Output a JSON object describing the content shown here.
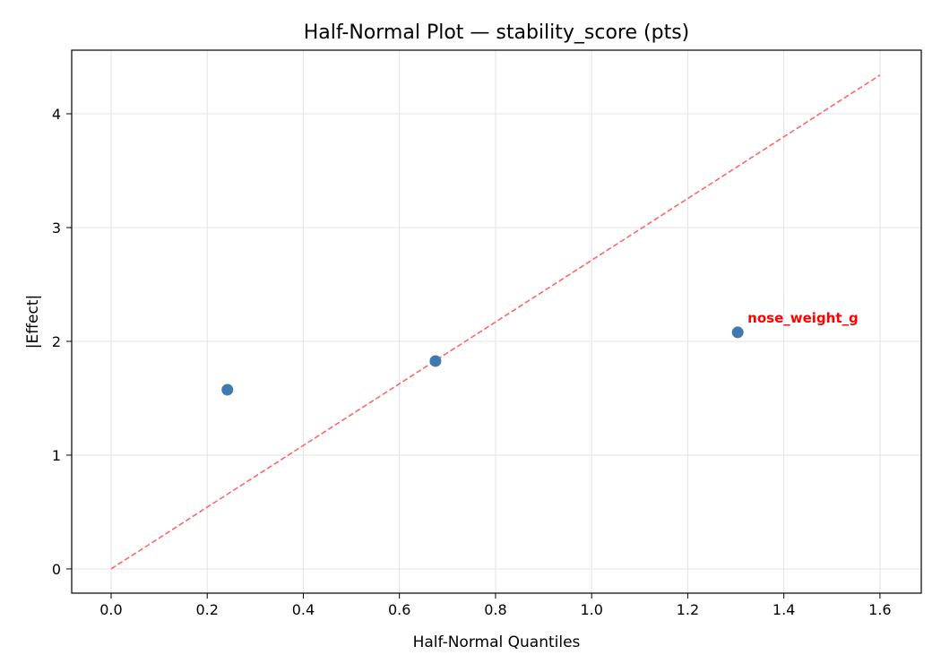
{
  "chart_data": {
    "type": "scatter",
    "title": "Half-Normal Plot — stability_score (pts)",
    "xlabel": "Half-Normal Quantiles",
    "ylabel": "|Effect|",
    "xlim": [
      -0.082,
      1.686
    ],
    "ylim": [
      -0.213,
      4.559
    ],
    "xticks": [
      0.0,
      0.2,
      0.4,
      0.6,
      0.8,
      1.0,
      1.2,
      1.4,
      1.6
    ],
    "xtick_labels": [
      "0.0",
      "0.2",
      "0.4",
      "0.6",
      "0.8",
      "1.0",
      "1.2",
      "1.4",
      "1.6"
    ],
    "yticks": [
      0,
      1,
      2,
      3,
      4
    ],
    "ytick_labels": [
      "0",
      "1",
      "2",
      "3",
      "4"
    ],
    "grid": true,
    "points": [
      {
        "x": 0.242,
        "y": 1.575,
        "label": ""
      },
      {
        "x": 0.675,
        "y": 1.827,
        "label": ""
      },
      {
        "x": 1.304,
        "y": 2.079,
        "label": "nose_weight_g"
      }
    ],
    "reference_line": {
      "x": [
        0,
        1.6
      ],
      "y": [
        0,
        4.34
      ],
      "style": "dashed"
    },
    "colors": {
      "points": "#4078b0",
      "reference_line": "#ff6666",
      "annotation": "#ff0000"
    }
  }
}
